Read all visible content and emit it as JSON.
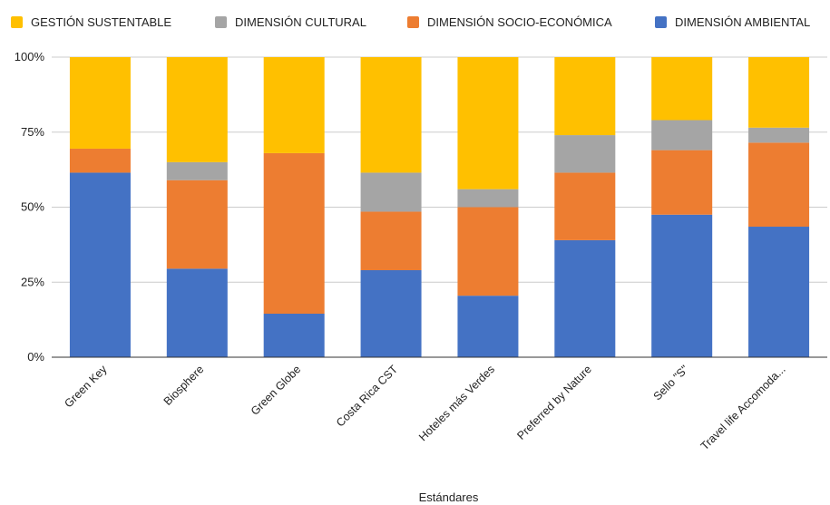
{
  "chart_data": {
    "type": "bar",
    "stacked": true,
    "stack_mode": "percent",
    "xlabel": "Estándares",
    "ylabel": "",
    "ylim": [
      0,
      100
    ],
    "y_ticks": [
      "0%",
      "25%",
      "50%",
      "75%",
      "100%"
    ],
    "grid": true,
    "legend_position": "top",
    "categories": [
      "Green Key",
      "Biosphere",
      "Green Globe",
      "Costa Rica CST",
      "Hoteles más Verdes",
      "Preferred by Nature",
      "Sello \"S\"",
      "Travel life Accomoda..."
    ],
    "legend_order": [
      "GESTIÓN SUSTENTABLE",
      "DIMENSIÓN CULTURAL",
      "DIMENSIÓN SOCIO-ECONÓMICA",
      "DIMENSIÓN AMBIENTAL"
    ],
    "series": [
      {
        "name": "DIMENSIÓN AMBIENTAL",
        "color": "#4472c4",
        "values": [
          61.5,
          29.5,
          14.5,
          29,
          20.5,
          39,
          47.5,
          43.5
        ]
      },
      {
        "name": "DIMENSIÓN SOCIO-ECONÓMICA",
        "color": "#ed7d31",
        "values": [
          8,
          29.5,
          53.5,
          19.5,
          29.5,
          22.5,
          21.5,
          28
        ]
      },
      {
        "name": "DIMENSIÓN CULTURAL",
        "color": "#a5a5a5",
        "values": [
          0,
          6,
          0,
          13,
          6,
          12.5,
          10,
          5
        ]
      },
      {
        "name": "GESTIÓN SUSTENTABLE",
        "color": "#ffc000",
        "values": [
          30.5,
          35,
          32,
          38.5,
          44,
          26,
          21,
          23.5
        ]
      }
    ]
  }
}
